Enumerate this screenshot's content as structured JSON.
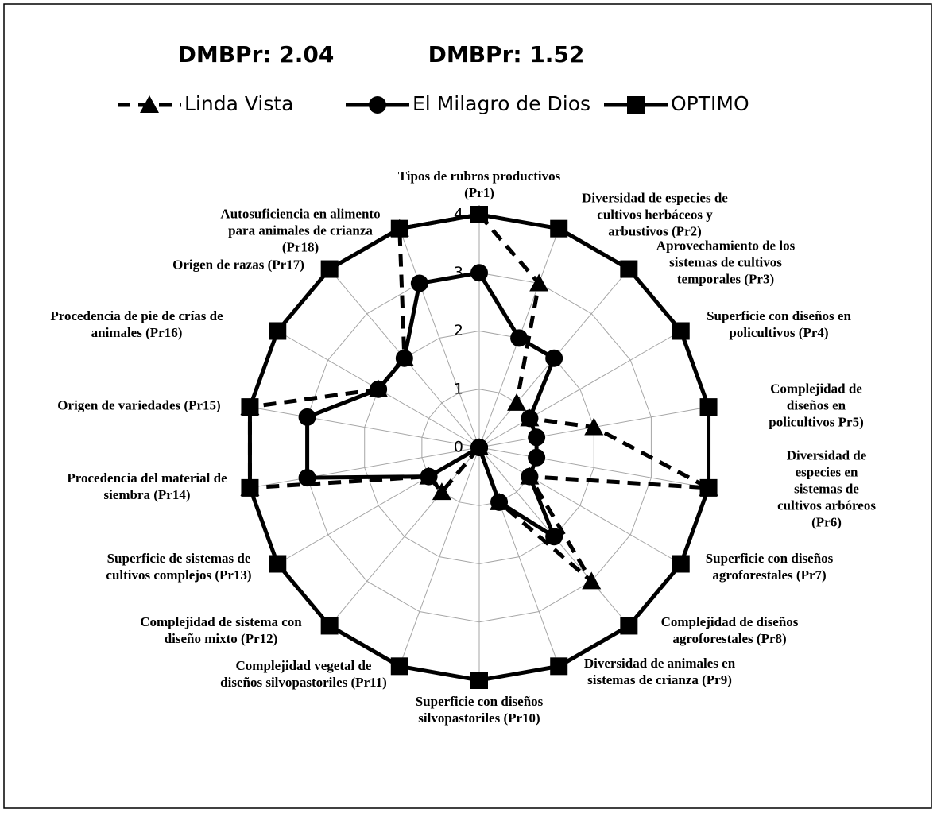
{
  "chart_data": {
    "type": "radar",
    "annotations": [
      "DMBPr: 2.04",
      "DMBPr: 1.52"
    ],
    "categories": [
      "Tipos de rubros productivos\n(Pr1)",
      "Diversidad de especies de\ncultivos herbáceos y\narbustivos  (Pr2)",
      "Aprovechamiento de los\nsistemas de cultivos\ntemporales (Pr3)",
      "Superficie con diseños en\npolicultivos (Pr4)",
      "Complejidad de diseños en\npolicultivos Pr5)",
      "Diversidad de especies en\nsistemas de cultivos arbóreos\n(Pr6)",
      "Superficie con diseños\nagroforestales (Pr7)",
      "Complejidad de diseños\nagroforestales (Pr8)",
      "Diversidad de animales en\nsistemas de crianza (Pr9)",
      "Superficie con diseños\nsilvopastoriles (Pr10)",
      "Complejidad vegetal de\ndiseños silvopastoriles (Pr11)",
      "Complejidad de sistema con\ndiseño mixto (Pr12)",
      "Superficie de sistemas de\ncultivos complejos (Pr13)",
      "Procedencia del material de\nsiembra (Pr14)",
      "Origen de variedades (Pr15)",
      "Procedencia de pie de crías de\nanimales (Pr16)",
      "Origen de razas (Pr17)",
      "Autosuficiencia en alimento\npara animales de crianza\n(Pr18)"
    ],
    "series": [
      {
        "name": "Linda Vista",
        "color": "#000000",
        "marker": "triangle",
        "dashed": true,
        "values": [
          4,
          3,
          1,
          1,
          2,
          4,
          1,
          3,
          1,
          0,
          0,
          1,
          1,
          4,
          4,
          2,
          2,
          4
        ]
      },
      {
        "name": "El Milagro de Dios",
        "color": "#000000",
        "marker": "circle",
        "dashed": false,
        "values": [
          3,
          2,
          2,
          1,
          1,
          1,
          1,
          2,
          1,
          0,
          0,
          0,
          1,
          3,
          3,
          2,
          2,
          3
        ]
      },
      {
        "name": "OPTIMO",
        "color": "#000000",
        "marker": "square",
        "dashed": false,
        "values": [
          4,
          4,
          4,
          4,
          4,
          4,
          4,
          4,
          4,
          4,
          4,
          4,
          4,
          4,
          4,
          4,
          4,
          4
        ]
      }
    ],
    "ylim": [
      0,
      4
    ],
    "yticks": [
      0,
      1,
      2,
      3,
      4
    ],
    "grid": true
  }
}
